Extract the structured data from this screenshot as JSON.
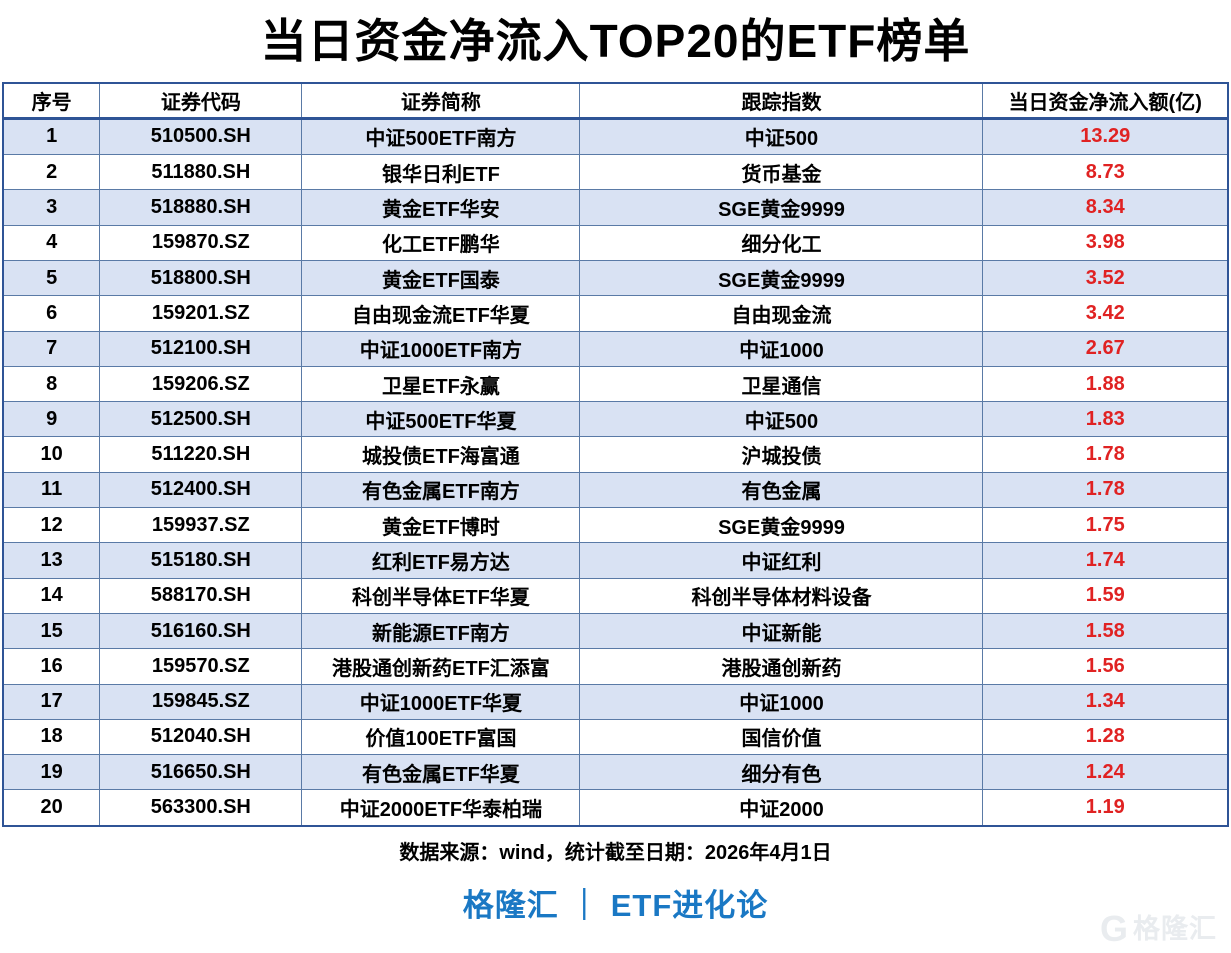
{
  "title": "当日资金净流入TOP20的ETF榜单",
  "chart_data": {
    "type": "table",
    "title": "当日资金净流入TOP20的ETF榜单",
    "columns": [
      "序号",
      "证券代码",
      "证券简称",
      "跟踪指数",
      "当日资金净流入额(亿)"
    ],
    "rows": [
      [
        "1",
        "510500.SH",
        "中证500ETF南方",
        "中证500",
        "13.29"
      ],
      [
        "2",
        "511880.SH",
        "银华日利ETF",
        "货币基金",
        "8.73"
      ],
      [
        "3",
        "518880.SH",
        "黄金ETF华安",
        "SGE黄金9999",
        "8.34"
      ],
      [
        "4",
        "159870.SZ",
        "化工ETF鹏华",
        "细分化工",
        "3.98"
      ],
      [
        "5",
        "518800.SH",
        "黄金ETF国泰",
        "SGE黄金9999",
        "3.52"
      ],
      [
        "6",
        "159201.SZ",
        "自由现金流ETF华夏",
        "自由现金流",
        "3.42"
      ],
      [
        "7",
        "512100.SH",
        "中证1000ETF南方",
        "中证1000",
        "2.67"
      ],
      [
        "8",
        "159206.SZ",
        "卫星ETF永赢",
        "卫星通信",
        "1.88"
      ],
      [
        "9",
        "512500.SH",
        "中证500ETF华夏",
        "中证500",
        "1.83"
      ],
      [
        "10",
        "511220.SH",
        "城投债ETF海富通",
        "沪城投债",
        "1.78"
      ],
      [
        "11",
        "512400.SH",
        "有色金属ETF南方",
        "有色金属",
        "1.78"
      ],
      [
        "12",
        "159937.SZ",
        "黄金ETF博时",
        "SGE黄金9999",
        "1.75"
      ],
      [
        "13",
        "515180.SH",
        "红利ETF易方达",
        "中证红利",
        "1.74"
      ],
      [
        "14",
        "588170.SH",
        "科创半导体ETF华夏",
        "科创半导体材料设备",
        "1.59"
      ],
      [
        "15",
        "516160.SH",
        "新能源ETF南方",
        "中证新能",
        "1.58"
      ],
      [
        "16",
        "159570.SZ",
        "港股通创新药ETF汇添富",
        "港股通创新药",
        "1.56"
      ],
      [
        "17",
        "159845.SZ",
        "中证1000ETF华夏",
        "中证1000",
        "1.34"
      ],
      [
        "18",
        "512040.SH",
        "价值100ETF富国",
        "国信价值",
        "1.28"
      ],
      [
        "19",
        "516650.SH",
        "有色金属ETF华夏",
        "细分有色",
        "1.24"
      ],
      [
        "20",
        "563300.SH",
        "中证2000ETF华泰柏瑞",
        "中证2000",
        "1.19"
      ]
    ],
    "layout_hints": {
      "alternating_row_shading": true,
      "value_column_color": "red",
      "grid": true
    }
  },
  "footer": {
    "source": "数据来源：wind，统计截至日期：2026年4月1日",
    "brand_left": "格隆汇",
    "brand_separator": "｜",
    "brand_right": "ETF进化论"
  },
  "watermark": {
    "icon_letter": "G",
    "text": "格隆汇"
  },
  "colors": {
    "grid": "#5a7aa6",
    "grid_dark": "#2f5496",
    "row_alt": "#d9e2f3",
    "red": "#e02222",
    "brand": "#1a78c4",
    "wm": "#e9ecef"
  }
}
